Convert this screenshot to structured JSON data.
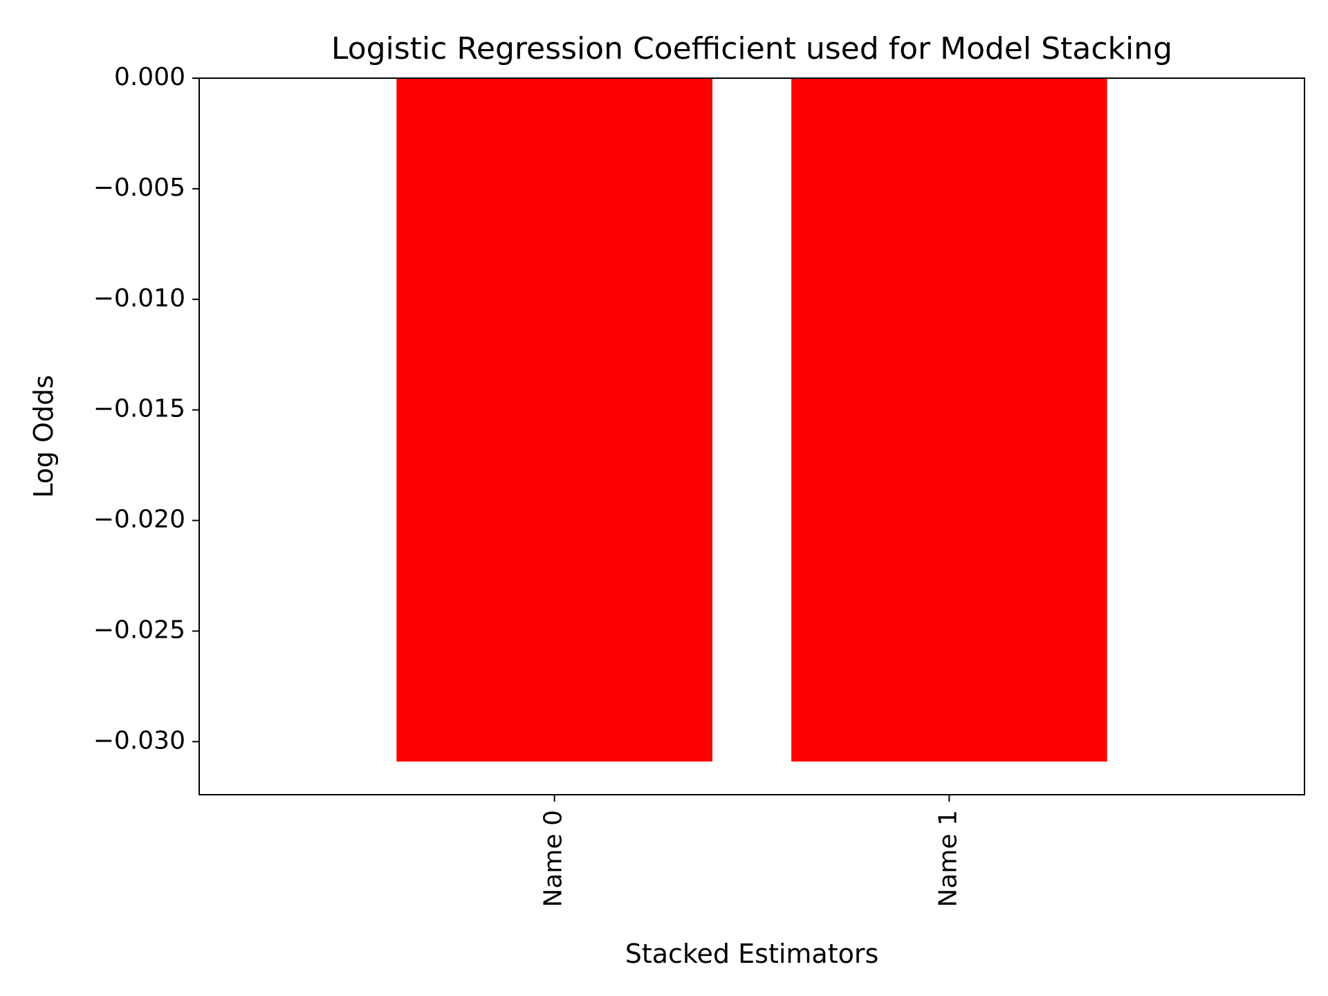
{
  "chart_data": {
    "type": "bar",
    "title": "Logistic Regression Coefficient used for Model Stacking",
    "xlabel": "Stacked Estimators",
    "ylabel": "Log Odds",
    "categories": [
      "Name 0",
      "Name 1"
    ],
    "values": [
      -0.0309,
      -0.0309
    ],
    "ylim": [
      -0.0324,
      0.0
    ],
    "yticks": [
      0.0,
      -0.005,
      -0.01,
      -0.015,
      -0.02,
      -0.025,
      -0.03
    ],
    "ytick_labels": [
      "0.000",
      "−0.005",
      "−0.010",
      "−0.015",
      "−0.020",
      "−0.025",
      "−0.030"
    ],
    "bar_color": "#ff0000",
    "grid": false,
    "legend": false,
    "xtick_rotation": "vertical"
  }
}
